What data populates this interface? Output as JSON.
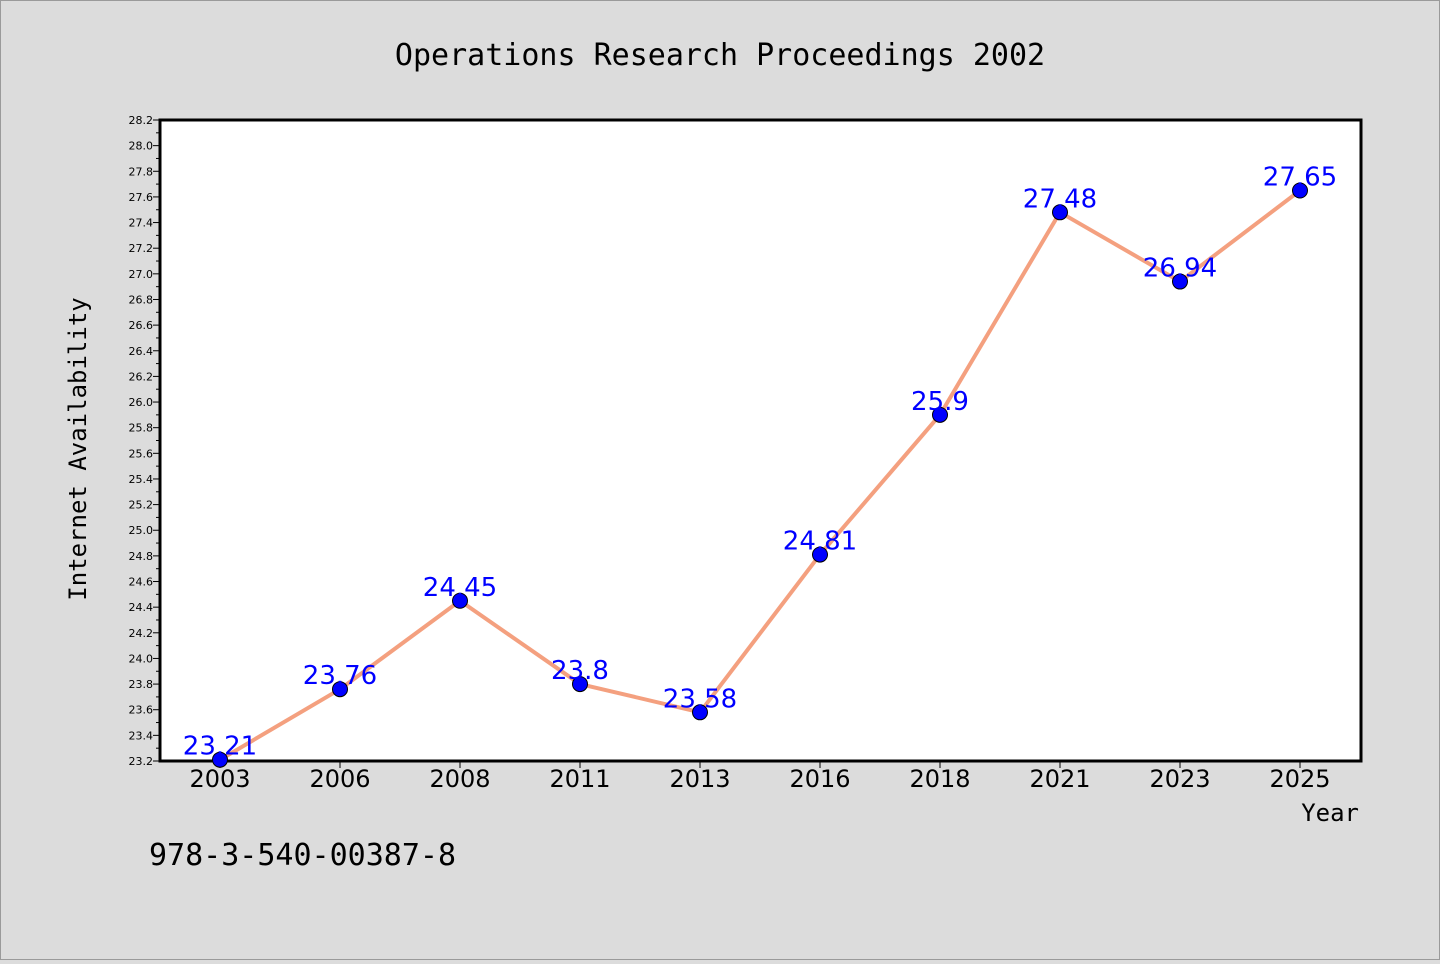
{
  "chart_data": {
    "type": "line",
    "title": "Operations Research Proceedings 2002",
    "xlabel": "Year",
    "ylabel": "Internet Availability",
    "categories": [
      "2003",
      "2006",
      "2008",
      "2011",
      "2013",
      "2016",
      "2018",
      "2021",
      "2023",
      "2025"
    ],
    "values": [
      23.21,
      23.76,
      24.45,
      23.8,
      23.58,
      24.81,
      25.9,
      27.48,
      26.94,
      27.65
    ],
    "value_labels": [
      "23.21",
      "23.76",
      "24.45",
      "23.8",
      "23.58",
      "24.81",
      "25.9",
      "27.48",
      "26.94",
      "27.65"
    ],
    "ylim": [
      23.2,
      28.2
    ],
    "yticks": [
      "23.2",
      "23.4",
      "23.6",
      "23.8",
      "24.0",
      "24.2",
      "24.4",
      "24.6",
      "24.8",
      "25.0",
      "25.2",
      "25.4",
      "25.6",
      "25.8",
      "26.0",
      "26.2",
      "26.4",
      "26.6",
      "26.8",
      "27.0",
      "27.2",
      "27.4",
      "27.6",
      "27.8",
      "28.0",
      "28.2"
    ],
    "grid": false,
    "legend": "none",
    "colors": {
      "line": "#f4a07f",
      "marker": "#0000ff",
      "data_label": "#0000ff",
      "background": "#dcdcdc",
      "plot_background": "#ffffff"
    }
  },
  "footer": {
    "isbn": "978-3-540-00387-8"
  }
}
